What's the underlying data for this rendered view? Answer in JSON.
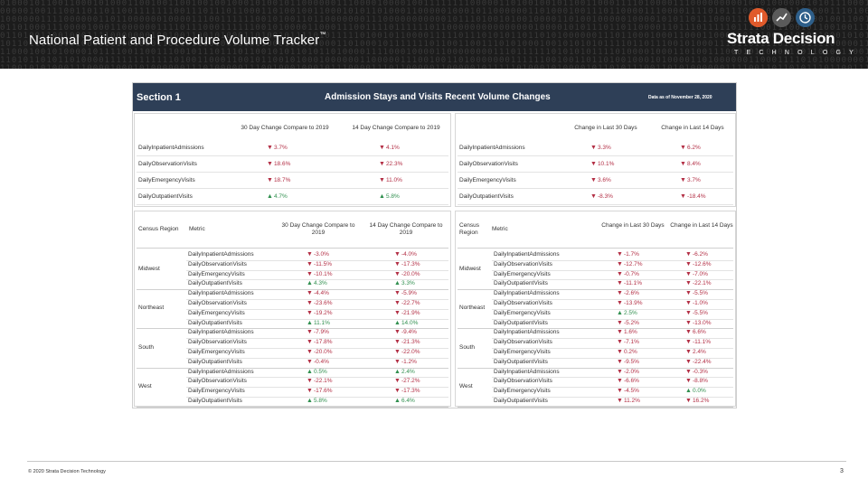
{
  "slide": {
    "title": "National Patient and Procedure Volume Tracker",
    "title_mark": "™",
    "brand": "Strata Decision",
    "brand_sub": "TECHNOLOGY",
    "copyright": "© 2020 Strata Decision Technology",
    "page_number": "3",
    "colors": {
      "header_bg": "#1c1c1c",
      "dash_header": "#2e3f57",
      "down": "#b32f45",
      "up": "#2f8f4e",
      "logo_orange": "#e05a2b",
      "logo_blue": "#2e5f8a"
    }
  },
  "dashboard": {
    "section": "Section 1",
    "title": "Admission Stays and Visits Recent Volume Changes",
    "as_of": "Data as of November 28, 2020",
    "top_left": {
      "col1": "30 Day Change Compare to 2019",
      "col2": "14 Day Change Compare to 2019",
      "rows": [
        {
          "metric": "DailyInpatientAdmissions",
          "v1": "3.7%",
          "d1": "down",
          "v2": "4.1%",
          "d2": "down"
        },
        {
          "metric": "DailyObservationVisits",
          "v1": "18.6%",
          "d1": "down",
          "v2": "22.3%",
          "d2": "down"
        },
        {
          "metric": "DailyEmergencyVisits",
          "v1": "18.7%",
          "d1": "down",
          "v2": "11.0%",
          "d2": "down"
        },
        {
          "metric": "DailyOutpatientVisits",
          "v1": "4.7%",
          "d1": "up",
          "v2": "5.8%",
          "d2": "up"
        }
      ]
    },
    "top_right": {
      "col1": "Change in Last 30 Days",
      "col2": "Change in Last 14 Days",
      "rows": [
        {
          "metric": "DailyInpatientAdmissions",
          "v1": "3.3%",
          "d1": "down",
          "v2": "6.2%",
          "d2": "down"
        },
        {
          "metric": "DailyObservationVisits",
          "v1": "10.1%",
          "d1": "down",
          "v2": "8.4%",
          "d2": "down"
        },
        {
          "metric": "DailyEmergencyVisits",
          "v1": "3.6%",
          "d1": "down",
          "v2": "3.7%",
          "d2": "down"
        },
        {
          "metric": "DailyOutpatientVisits",
          "v1": "-8.3%",
          "d1": "down",
          "v2": "-18.4%",
          "d2": "down"
        }
      ]
    },
    "bottom_left": {
      "col_region": "Census Region",
      "col_metric": "Metric",
      "col1": "30 Day Change Compare to 2019",
      "col2": "14 Day Change Compare to 2019",
      "regions": [
        {
          "name": "Midwest",
          "rows": [
            {
              "metric": "DailyInpatientAdmissions",
              "v1": "-3.0%",
              "d1": "down",
              "v2": "-4.0%",
              "d2": "down"
            },
            {
              "metric": "DailyObservationVisits",
              "v1": "-11.5%",
              "d1": "down",
              "v2": "-17.3%",
              "d2": "down"
            },
            {
              "metric": "DailyEmergencyVisits",
              "v1": "-10.1%",
              "d1": "down",
              "v2": "-20.0%",
              "d2": "down"
            },
            {
              "metric": "DailyOutpatientVisits",
              "v1": "4.3%",
              "d1": "up",
              "v2": "3.3%",
              "d2": "up"
            }
          ]
        },
        {
          "name": "Northeast",
          "rows": [
            {
              "metric": "DailyInpatientAdmissions",
              "v1": "-4.4%",
              "d1": "down",
              "v2": "-5.9%",
              "d2": "down"
            },
            {
              "metric": "DailyObservationVisits",
              "v1": "-23.6%",
              "d1": "down",
              "v2": "-22.7%",
              "d2": "down"
            },
            {
              "metric": "DailyEmergencyVisits",
              "v1": "-19.2%",
              "d1": "down",
              "v2": "-21.9%",
              "d2": "down"
            },
            {
              "metric": "DailyOutpatientVisits",
              "v1": "11.1%",
              "d1": "up",
              "v2": "14.0%",
              "d2": "up"
            }
          ]
        },
        {
          "name": "South",
          "rows": [
            {
              "metric": "DailyInpatientAdmissions",
              "v1": "-7.9%",
              "d1": "down",
              "v2": "-9.4%",
              "d2": "down"
            },
            {
              "metric": "DailyObservationVisits",
              "v1": "-17.8%",
              "d1": "down",
              "v2": "-21.3%",
              "d2": "down"
            },
            {
              "metric": "DailyEmergencyVisits",
              "v1": "-20.0%",
              "d1": "down",
              "v2": "-22.0%",
              "d2": "down"
            },
            {
              "metric": "DailyOutpatientVisits",
              "v1": "-0.4%",
              "d1": "down",
              "v2": "-1.2%",
              "d2": "down"
            }
          ]
        },
        {
          "name": "West",
          "rows": [
            {
              "metric": "DailyInpatientAdmissions",
              "v1": "0.5%",
              "d1": "up",
              "v2": "2.4%",
              "d2": "up"
            },
            {
              "metric": "DailyObservationVisits",
              "v1": "-22.1%",
              "d1": "down",
              "v2": "-27.2%",
              "d2": "down"
            },
            {
              "metric": "DailyEmergencyVisits",
              "v1": "-17.6%",
              "d1": "down",
              "v2": "-17.3%",
              "d2": "down"
            },
            {
              "metric": "DailyOutpatientVisits",
              "v1": "5.8%",
              "d1": "up",
              "v2": "6.4%",
              "d2": "up"
            }
          ]
        }
      ]
    },
    "bottom_right": {
      "col_region": "Census Region",
      "col_metric": "Metric",
      "col1": "Change in Last 30 Days",
      "col2": "Change in Last 14 Days",
      "regions": [
        {
          "name": "Midwest",
          "rows": [
            {
              "metric": "DailyInpatientAdmissions",
              "v1": "-1.7%",
              "d1": "down",
              "v2": "-6.2%",
              "d2": "down"
            },
            {
              "metric": "DailyObservationVisits",
              "v1": "-12.7%",
              "d1": "down",
              "v2": "-12.6%",
              "d2": "down"
            },
            {
              "metric": "DailyEmergencyVisits",
              "v1": "-0.7%",
              "d1": "down",
              "v2": "-7.0%",
              "d2": "down"
            },
            {
              "metric": "DailyOutpatientVisits",
              "v1": "-11.1%",
              "d1": "down",
              "v2": "-22.1%",
              "d2": "down"
            }
          ]
        },
        {
          "name": "Northeast",
          "rows": [
            {
              "metric": "DailyInpatientAdmissions",
              "v1": "-2.6%",
              "d1": "down",
              "v2": "-5.5%",
              "d2": "down"
            },
            {
              "metric": "DailyObservationVisits",
              "v1": "-13.9%",
              "d1": "down",
              "v2": "-1.0%",
              "d2": "down"
            },
            {
              "metric": "DailyEmergencyVisits",
              "v1": "2.5%",
              "d1": "up",
              "v2": "-5.5%",
              "d2": "down"
            },
            {
              "metric": "DailyOutpatientVisits",
              "v1": "-5.2%",
              "d1": "down",
              "v2": "-13.0%",
              "d2": "down"
            }
          ]
        },
        {
          "name": "South",
          "rows": [
            {
              "metric": "DailyInpatientAdmissions",
              "v1": "1.6%",
              "d1": "down",
              "v2": "6.6%",
              "d2": "down"
            },
            {
              "metric": "DailyObservationVisits",
              "v1": "-7.1%",
              "d1": "down",
              "v2": "-11.1%",
              "d2": "down"
            },
            {
              "metric": "DailyEmergencyVisits",
              "v1": "0.2%",
              "d1": "down",
              "v2": "2.4%",
              "d2": "down"
            },
            {
              "metric": "DailyOutpatientVisits",
              "v1": "-9.5%",
              "d1": "down",
              "v2": "-22.4%",
              "d2": "down"
            }
          ]
        },
        {
          "name": "West",
          "rows": [
            {
              "metric": "DailyInpatientAdmissions",
              "v1": "-2.0%",
              "d1": "down",
              "v2": "-0.3%",
              "d2": "down"
            },
            {
              "metric": "DailyObservationVisits",
              "v1": "-6.6%",
              "d1": "down",
              "v2": "-8.8%",
              "d2": "down"
            },
            {
              "metric": "DailyEmergencyVisits",
              "v1": "-4.5%",
              "d1": "down",
              "v2": "0.0%",
              "d2": "up"
            },
            {
              "metric": "DailyOutpatientVisits",
              "v1": "11.2%",
              "d1": "down",
              "v2": "16.2%",
              "d2": "down"
            }
          ]
        }
      ]
    }
  }
}
